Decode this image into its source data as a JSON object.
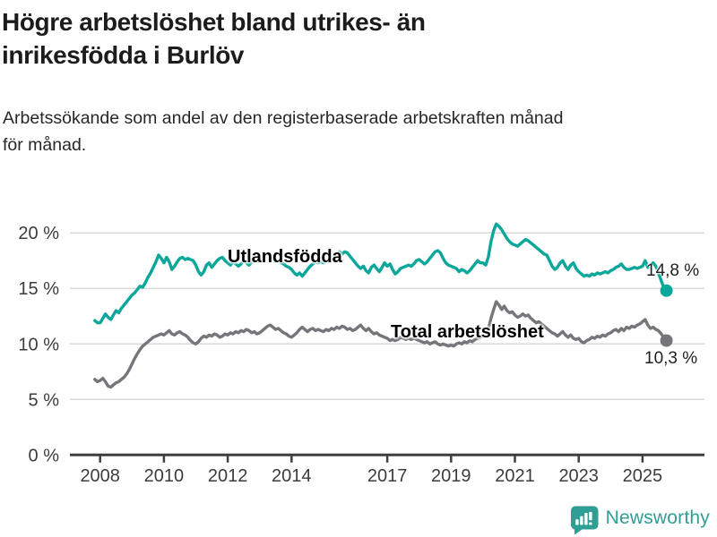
{
  "header": {
    "title_lines": [
      "Högre arbetslöshet bland utrikes- än",
      "inrikesfödda i Burlöv"
    ],
    "subtitle_lines": [
      "Arbetssökande som andel av den registerbaserade arbetskraften månad",
      "för månad."
    ]
  },
  "chart_data": {
    "type": "line",
    "x_start": "2007-11",
    "x_freq": "monthly",
    "x_ticks": [
      2008,
      2010,
      2012,
      2014,
      2017,
      2019,
      2021,
      2023,
      2025
    ],
    "y_ticks": [
      0,
      5,
      10,
      15,
      20
    ],
    "y_tick_suffix": " %",
    "ylim": [
      0,
      21.5
    ],
    "grid": "horizontal",
    "colors": {
      "grid": "#d9d9d9",
      "axis": "#3f3f3f",
      "tick_text": "#3c3c3c"
    },
    "series": [
      {
        "name": "Utlandsfödda",
        "color": "#0ba79a",
        "end_label": "14,8 %",
        "values": [
          12.1,
          11.9,
          11.9,
          12.3,
          12.7,
          12.4,
          12.2,
          12.6,
          13.0,
          12.8,
          13.2,
          13.5,
          13.8,
          14.1,
          14.4,
          14.6,
          14.9,
          15.2,
          15.1,
          15.5,
          16.0,
          16.4,
          16.9,
          17.4,
          18.0,
          17.7,
          17.3,
          17.8,
          17.4,
          16.7,
          17.0,
          17.4,
          17.7,
          17.8,
          17.6,
          17.7,
          17.6,
          17.5,
          17.1,
          16.5,
          16.2,
          16.5,
          17.1,
          17.3,
          16.9,
          17.2,
          17.5,
          17.7,
          17.8,
          17.5,
          17.3,
          17.1,
          17.4,
          17.2,
          17.0,
          17.2,
          17.5,
          17.3,
          17.1,
          17.4,
          17.6,
          17.4,
          17.5,
          17.7,
          17.9,
          18.1,
          17.8,
          17.6,
          17.4,
          17.6,
          17.3,
          17.2,
          17.0,
          16.9,
          16.7,
          16.4,
          16.2,
          16.4,
          16.1,
          16.4,
          16.7,
          17.0,
          17.2,
          17.4,
          17.3,
          17.4,
          17.3,
          17.5,
          17.4,
          17.6,
          17.9,
          18.1,
          18.3,
          18.1,
          18.3,
          18.2,
          17.9,
          17.6,
          17.3,
          17.0,
          16.8,
          17.0,
          16.6,
          16.4,
          16.9,
          17.1,
          16.8,
          16.5,
          16.9,
          17.3,
          17.0,
          17.2,
          16.7,
          16.3,
          16.5,
          16.8,
          16.9,
          17.0,
          17.1,
          17.0,
          17.2,
          17.5,
          17.6,
          17.4,
          17.2,
          17.4,
          17.7,
          18.0,
          18.3,
          18.4,
          18.2,
          17.7,
          17.3,
          17.1,
          17.0,
          16.9,
          16.8,
          16.5,
          16.7,
          16.6,
          16.4,
          16.6,
          16.9,
          17.2,
          17.5,
          17.3,
          17.3,
          17.1,
          17.8,
          19.2,
          20.2,
          20.8,
          20.6,
          20.3,
          19.9,
          19.5,
          19.2,
          19.0,
          18.9,
          18.8,
          19.0,
          19.2,
          19.4,
          19.3,
          19.1,
          18.9,
          18.7,
          18.5,
          18.3,
          18.1,
          18.0,
          17.5,
          17.0,
          16.7,
          16.9,
          17.3,
          17.5,
          17.0,
          16.7,
          17.1,
          17.3,
          16.8,
          16.5,
          16.3,
          16.1,
          16.2,
          16.1,
          16.3,
          16.2,
          16.4,
          16.3,
          16.4,
          16.5,
          16.4,
          16.6,
          16.7,
          16.9,
          17.0,
          17.2,
          16.9,
          16.7,
          16.7,
          16.8,
          16.9,
          16.8,
          16.9,
          17.0,
          17.5,
          16.9,
          17.1,
          17.3,
          17.0,
          16.4,
          15.7,
          15.1,
          14.8
        ]
      },
      {
        "name": "Total arbetslöshet",
        "color": "#76757a",
        "end_label": "10,3 %",
        "values": [
          6.8,
          6.6,
          6.7,
          6.9,
          6.6,
          6.2,
          6.1,
          6.3,
          6.5,
          6.6,
          6.8,
          7.0,
          7.3,
          7.7,
          8.2,
          8.7,
          9.1,
          9.5,
          9.8,
          10.0,
          10.2,
          10.4,
          10.6,
          10.7,
          10.8,
          10.9,
          10.8,
          11.0,
          11.2,
          10.9,
          10.8,
          11.0,
          11.1,
          10.9,
          10.8,
          10.6,
          10.3,
          10.1,
          10.0,
          10.2,
          10.5,
          10.7,
          10.6,
          10.8,
          10.7,
          10.9,
          10.8,
          10.6,
          10.7,
          10.9,
          10.8,
          11.0,
          10.9,
          11.1,
          11.0,
          11.2,
          11.1,
          11.3,
          11.2,
          11.0,
          11.1,
          10.9,
          11.0,
          11.2,
          11.4,
          11.6,
          11.7,
          11.5,
          11.3,
          11.4,
          11.2,
          11.0,
          10.9,
          10.7,
          10.6,
          10.8,
          11.0,
          11.3,
          11.5,
          11.3,
          11.1,
          11.3,
          11.4,
          11.2,
          11.3,
          11.2,
          11.1,
          11.3,
          11.2,
          11.4,
          11.3,
          11.5,
          11.4,
          11.6,
          11.5,
          11.3,
          11.4,
          11.2,
          11.3,
          11.5,
          11.7,
          11.4,
          11.2,
          11.4,
          11.1,
          10.9,
          11.0,
          10.8,
          10.7,
          10.6,
          10.5,
          10.3,
          10.4,
          10.3,
          10.4,
          10.6,
          10.5,
          10.4,
          10.5,
          10.4,
          10.5,
          10.4,
          10.3,
          10.2,
          10.1,
          10.2,
          10.0,
          10.1,
          10.2,
          10.0,
          9.9,
          10.0,
          9.9,
          9.8,
          9.9,
          9.8,
          10.0,
          10.1,
          10.0,
          10.2,
          10.1,
          10.3,
          10.2,
          10.4,
          10.5,
          10.6,
          10.7,
          10.8,
          11.3,
          12.3,
          13.1,
          13.8,
          13.5,
          13.1,
          13.4,
          13.0,
          12.8,
          12.9,
          12.6,
          12.4,
          12.5,
          12.7,
          12.5,
          12.6,
          12.3,
          12.1,
          11.9,
          12.0,
          11.8,
          11.6,
          11.4,
          11.2,
          11.0,
          10.9,
          10.7,
          10.9,
          11.1,
          10.8,
          10.6,
          10.8,
          10.5,
          10.4,
          10.5,
          10.2,
          10.1,
          10.3,
          10.4,
          10.6,
          10.5,
          10.7,
          10.6,
          10.8,
          10.7,
          10.9,
          11.0,
          11.2,
          11.3,
          11.1,
          11.4,
          11.2,
          11.5,
          11.4,
          11.6,
          11.5,
          11.7,
          11.8,
          12.0,
          12.2,
          11.7,
          11.4,
          11.5,
          11.3,
          11.2,
          10.9,
          10.6,
          10.3
        ]
      }
    ]
  },
  "footer": {
    "brand": "Newsworthy",
    "brand_color": "#2f9e94",
    "logo_icon": "bar-chart-speech-bubble"
  }
}
